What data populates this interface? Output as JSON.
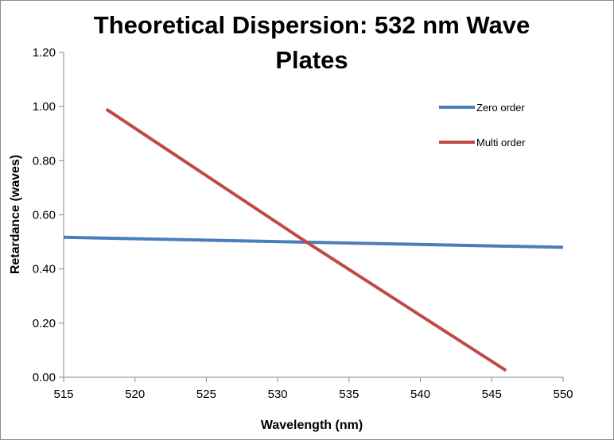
{
  "chart_data": {
    "type": "line",
    "title": "Theoretical Dispersion: 532 nm Wave Plates",
    "xlabel": "Wavelength (nm)",
    "ylabel": "Retardance (waves)",
    "xlim": [
      515,
      550
    ],
    "ylim": [
      0,
      1.2
    ],
    "xticks": [
      "515",
      "520",
      "525",
      "530",
      "535",
      "540",
      "545",
      "550"
    ],
    "yticks": [
      "0.00",
      "0.20",
      "0.40",
      "0.60",
      "0.80",
      "1.00",
      "1.20"
    ],
    "grid": false,
    "legend_position": "top-right",
    "series": [
      {
        "name": "Zero order",
        "color": "#4a7ebb",
        "x": [
          515,
          550
        ],
        "y": [
          0.517,
          0.48
        ]
      },
      {
        "name": "Multi order",
        "color": "#be4b48",
        "x": [
          518,
          532,
          546
        ],
        "y": [
          0.99,
          0.5,
          0.025
        ]
      }
    ]
  }
}
